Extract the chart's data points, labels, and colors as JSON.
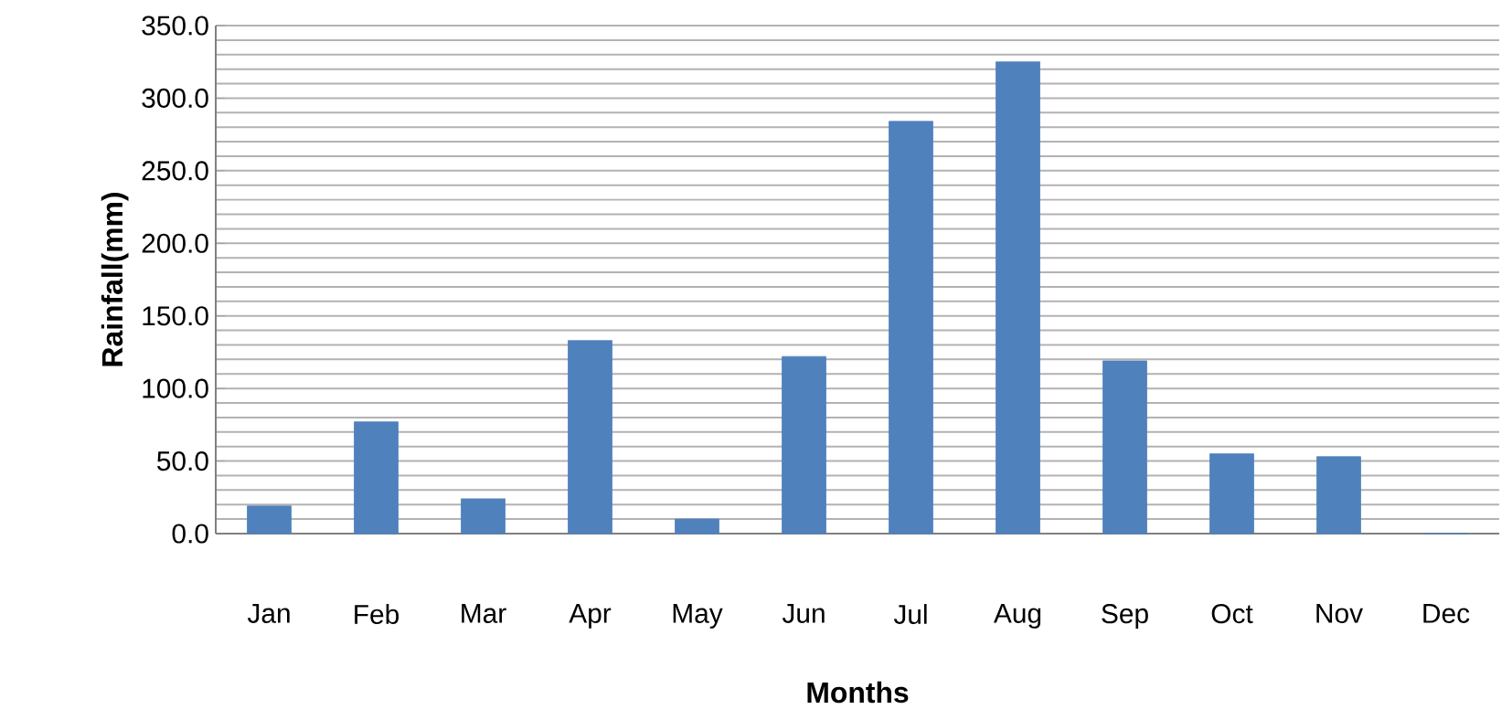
{
  "chart_data": {
    "type": "bar",
    "xlabel": "Months",
    "ylabel": "Rainfall(mm)",
    "categories": [
      "Jan",
      "Feb",
      "Mar",
      "Apr",
      "May",
      "Jun",
      "Jul",
      "Aug",
      "Sep",
      "Oct",
      "Nov",
      "Dec"
    ],
    "values": [
      19,
      77,
      24,
      133,
      10,
      122,
      284,
      325,
      119,
      55,
      53,
      0
    ],
    "color": "#4f81bd",
    "ylim": [
      0,
      350
    ],
    "yticks": [
      {
        "value": 0,
        "label": "0.0"
      },
      {
        "value": 50,
        "label": "50.0"
      },
      {
        "value": 100,
        "label": "100.0"
      },
      {
        "value": 150,
        "label": "150.0"
      },
      {
        "value": 200,
        "label": "200.0"
      },
      {
        "value": 250,
        "label": "250.0"
      },
      {
        "value": 300,
        "label": "300.0"
      },
      {
        "value": 350,
        "label": "350.0"
      }
    ],
    "grid": true
  }
}
